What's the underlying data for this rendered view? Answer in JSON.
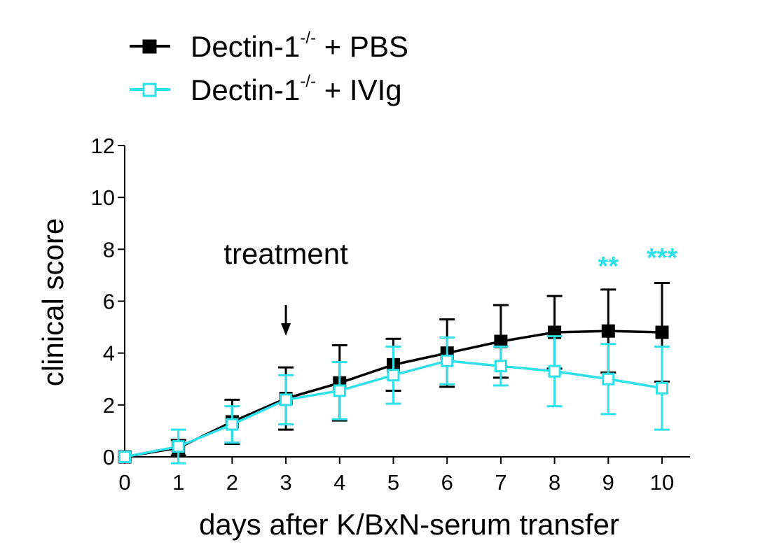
{
  "chart_data": {
    "type": "line",
    "xlabel": "days after K/BxN-serum transfer",
    "ylabel": "clinical score",
    "xlim": [
      0,
      10
    ],
    "ylim": [
      0,
      12
    ],
    "x": [
      0,
      1,
      2,
      3,
      4,
      5,
      6,
      7,
      8,
      9,
      10
    ],
    "x_ticks": [
      "0",
      "1",
      "2",
      "3",
      "4",
      "5",
      "6",
      "7",
      "8",
      "9",
      "10"
    ],
    "y_ticks": [
      "0",
      "2",
      "4",
      "6",
      "8",
      "10",
      "12"
    ],
    "legend_position": "top-left",
    "series": [
      {
        "name": "Dectin-1",
        "name_superscript": "-/-",
        "name_suffix": "+ PBS",
        "color": "#000000",
        "marker": "filled-square",
        "values": [
          0.0,
          0.35,
          1.35,
          2.25,
          2.85,
          3.55,
          4.0,
          4.45,
          4.8,
          4.85,
          4.8
        ],
        "error": [
          0.0,
          0.3,
          0.85,
          1.2,
          1.45,
          1.0,
          1.3,
          1.4,
          1.4,
          1.6,
          1.9
        ]
      },
      {
        "name": "Dectin-1",
        "name_superscript": "-/-",
        "name_suffix": "+ IVIg",
        "color": "#2fe0e8",
        "marker": "open-square",
        "values": [
          0.0,
          0.4,
          1.25,
          2.2,
          2.55,
          3.15,
          3.7,
          3.5,
          3.3,
          3.0,
          2.65
        ],
        "error": [
          0.0,
          0.65,
          0.7,
          0.95,
          1.1,
          1.1,
          0.9,
          0.75,
          1.35,
          1.35,
          1.6
        ]
      }
    ],
    "annotations": [
      {
        "text": "treatment",
        "x": 3,
        "arrow": true
      },
      {
        "text": "**",
        "x": 9,
        "color": "#2fe0e8"
      },
      {
        "text": "***",
        "x": 10,
        "color": "#2fe0e8"
      }
    ]
  }
}
